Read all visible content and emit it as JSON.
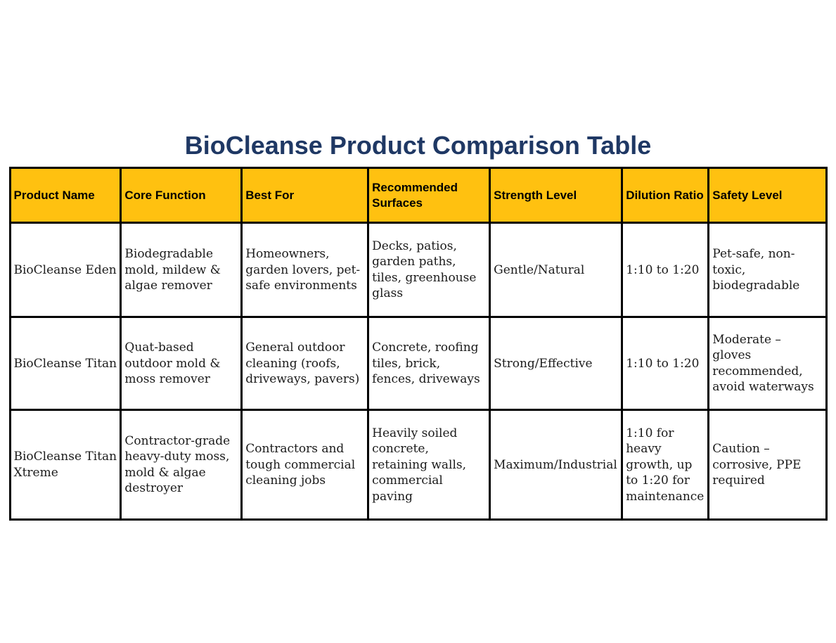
{
  "theme": {
    "page_bg": "#FFFFFF",
    "title_color": "#1F3864",
    "header_bg": "#FFC110",
    "border_color": "#000000",
    "body_text": "#1B1B1B"
  },
  "page": {
    "title": "BioCleanse Product Comparison Table"
  },
  "table": {
    "columns": [
      "Product Name",
      "Core Function",
      "Best For",
      "Recommended Surfaces",
      "Strength Level",
      "Dilution Ratio",
      "Safety Level"
    ],
    "rows": [
      {
        "cells": [
          "BioCleanse Eden",
          "Biodegradable mold, mildew & algae remover",
          "Homeowners, garden lovers, pet-safe environments",
          "Decks, patios, garden paths, tiles, greenhouse glass",
          "Gentle/Natural",
          "1:10 to 1:20",
          "Pet-safe, non-toxic, biodegradable"
        ]
      },
      {
        "cells": [
          "BioCleanse Titan",
          "Quat-based outdoor mold & moss remover",
          "General outdoor cleaning (roofs, driveways, pavers)",
          "Concrete, roofing tiles, brick, fences, driveways",
          "Strong/Effective",
          "1:10 to 1:20",
          "Moderate – gloves recommended, avoid waterways"
        ]
      },
      {
        "cells": [
          "BioCleanse Titan Xtreme",
          "Contractor-grade heavy-duty moss, mold & algae destroyer",
          "Contractors and tough commercial cleaning jobs",
          "Heavily soiled concrete, retaining walls, commercial paving",
          "Maximum/Industrial",
          "1:10 for heavy growth, up to 1:20 for maintenance",
          "Caution – corrosive, PPE required"
        ]
      }
    ]
  }
}
